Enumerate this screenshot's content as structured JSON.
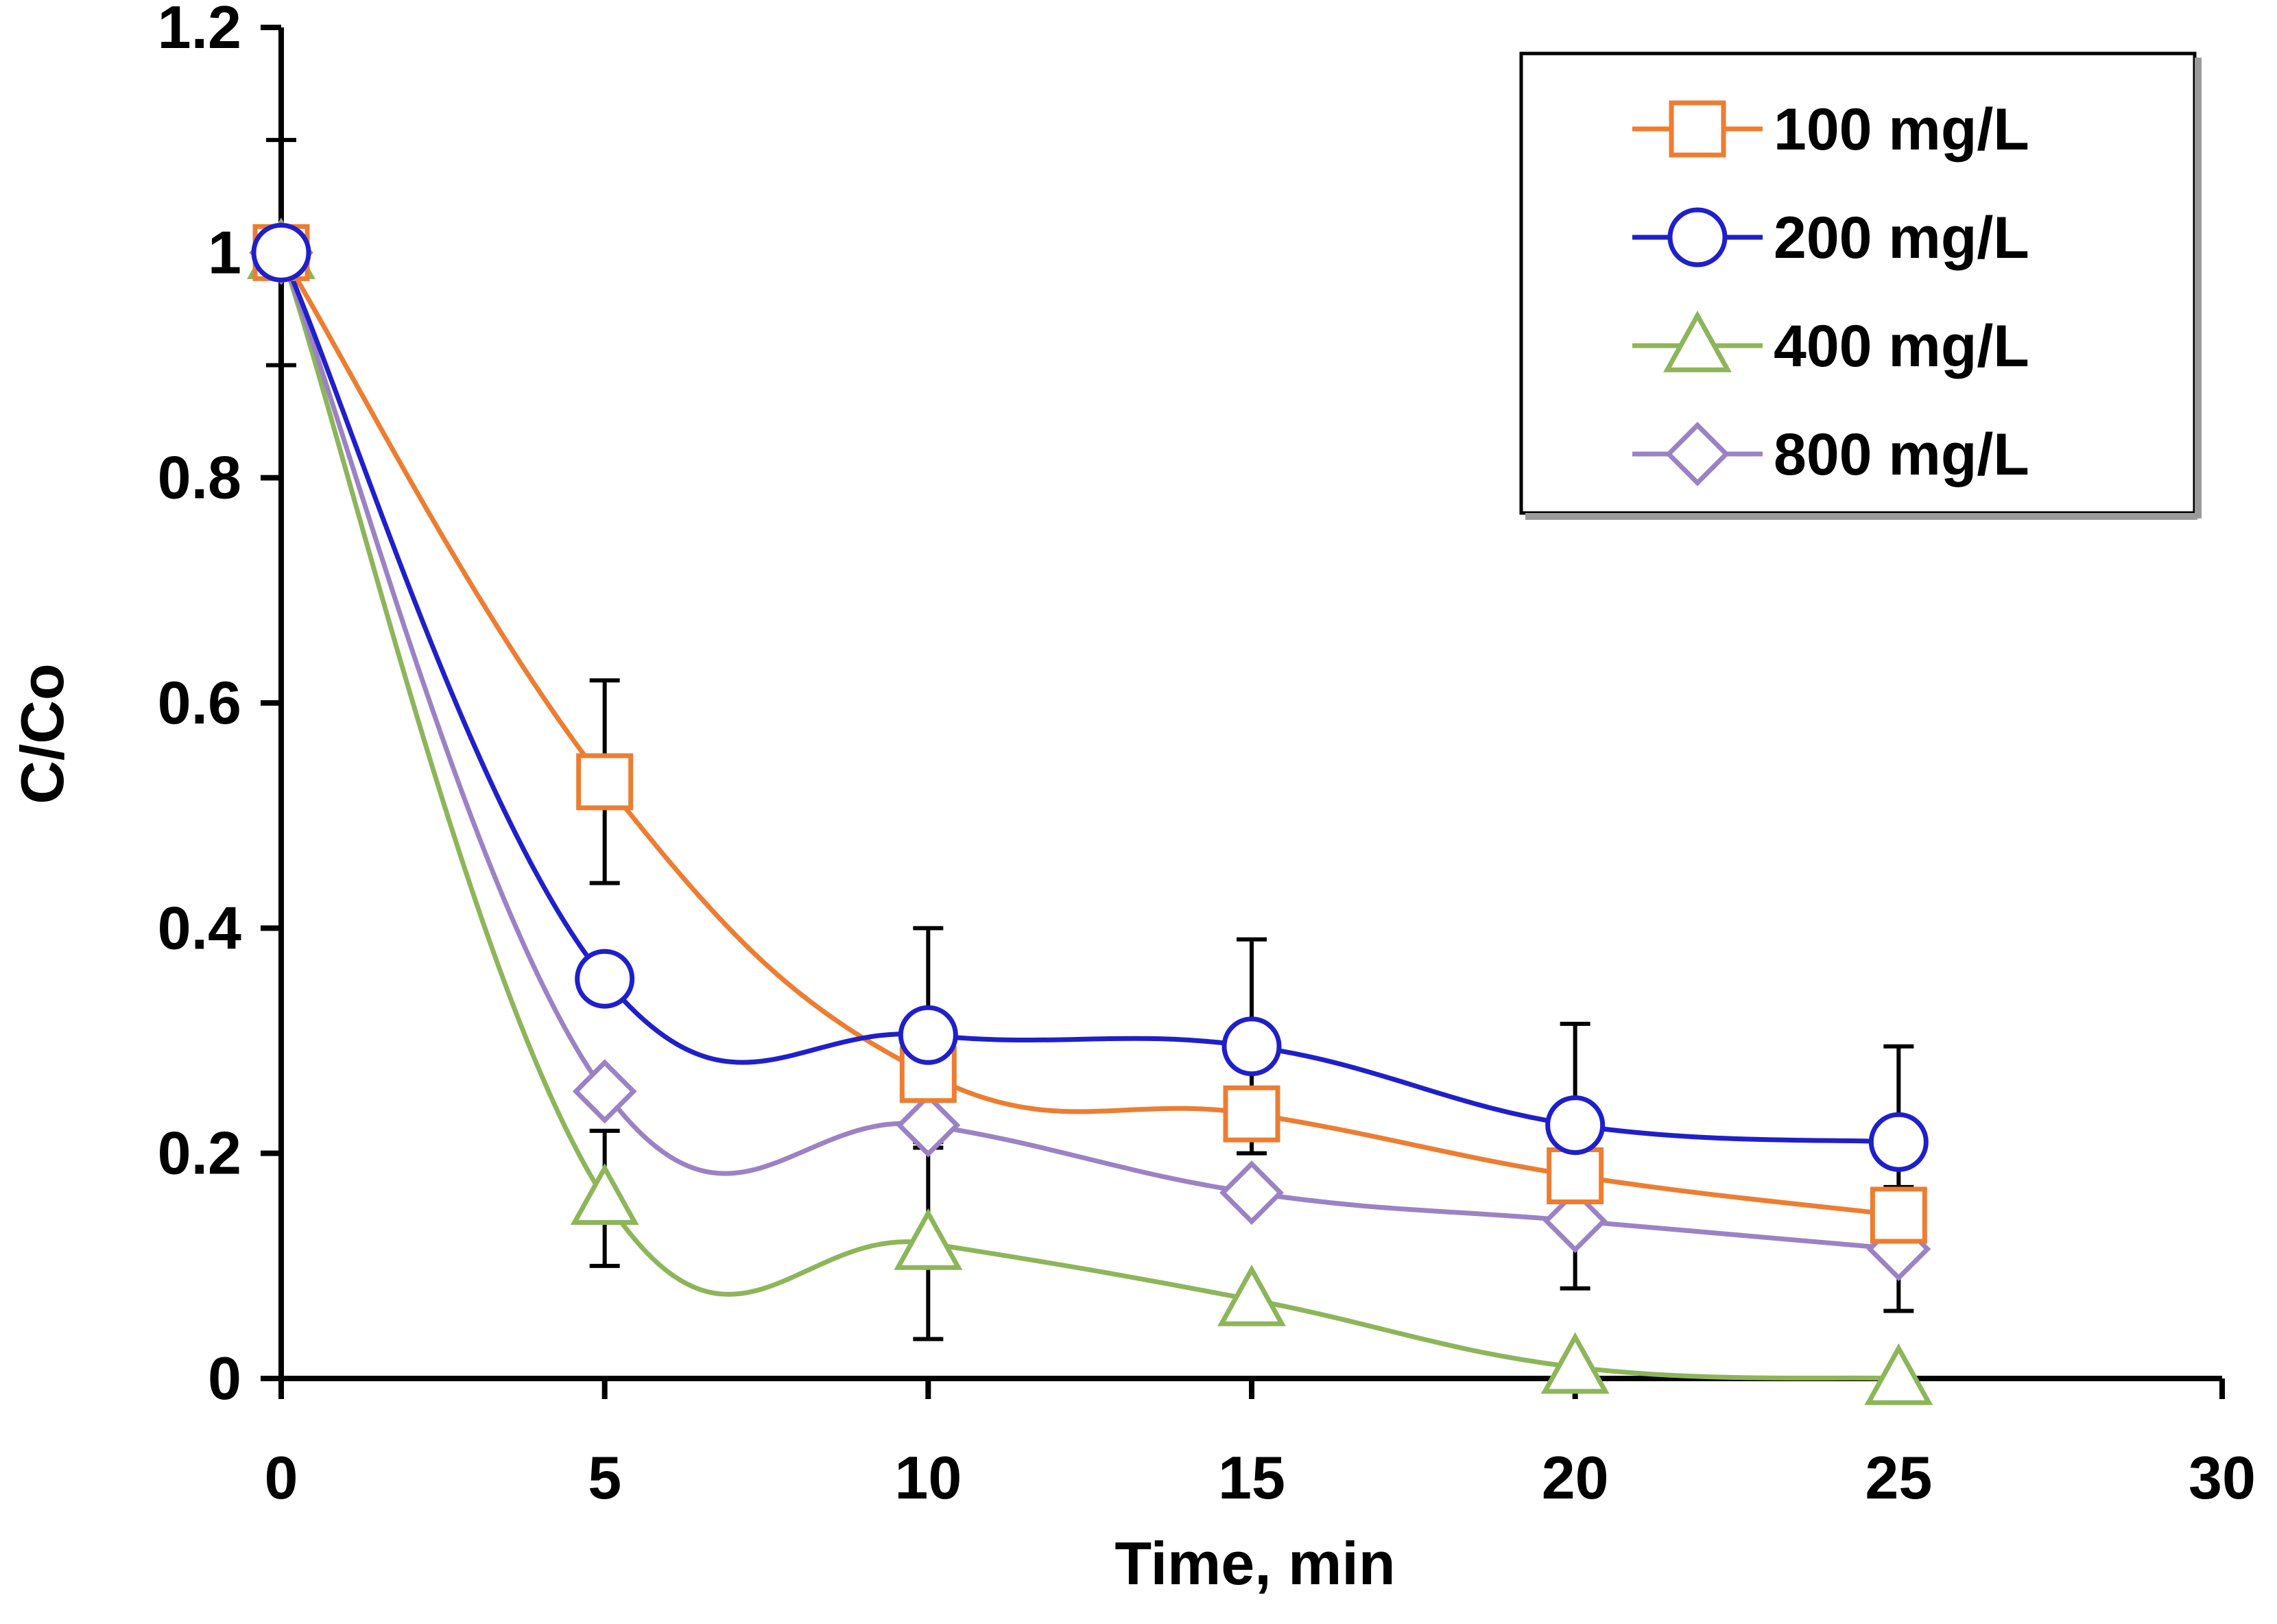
{
  "chart_data": {
    "type": "line",
    "title": "",
    "xlabel": "Time, min",
    "ylabel": "C/Co",
    "xlim": [
      0,
      30
    ],
    "ylim": [
      0,
      1.2
    ],
    "x_ticks": [
      "0",
      "5",
      "10",
      "15",
      "20",
      "25",
      "30"
    ],
    "y_ticks": [
      "0",
      "0.2",
      "0.4",
      "0.6",
      "0.8",
      "1",
      "1.2"
    ],
    "legend_position": "top-right",
    "x": [
      0,
      5,
      10,
      15,
      20,
      25
    ],
    "series": [
      {
        "name": "100 mg/L",
        "color": "#ED7D31",
        "marker": "square",
        "values": [
          1.0,
          0.53,
          0.27,
          0.235,
          0.18,
          0.145
        ],
        "error": [
          0.1,
          0.09,
          0.0,
          0.0,
          0.0,
          0.0
        ]
      },
      {
        "name": "200 mg/L",
        "color": "#1F1FCC",
        "marker": "circle",
        "values": [
          1.0,
          0.355,
          0.305,
          0.295,
          0.225,
          0.21
        ],
        "error": [
          0.0,
          0.0,
          0.095,
          0.095,
          0.09,
          0.085
        ]
      },
      {
        "name": "400 mg/L",
        "color": "#8DB559",
        "marker": "triangle",
        "values": [
          1.0,
          0.16,
          0.12,
          0.07,
          0.01,
          0.0
        ],
        "error": [
          0.0,
          0.06,
          0.085,
          0.0,
          0.0,
          0.0
        ]
      },
      {
        "name": "800 mg/L",
        "color": "#9B82C4",
        "marker": "diamond",
        "values": [
          1.0,
          0.255,
          0.225,
          0.165,
          0.14,
          0.115
        ],
        "error": [
          0.0,
          0.0,
          0.0,
          0.0,
          0.06,
          0.055
        ]
      }
    ]
  }
}
